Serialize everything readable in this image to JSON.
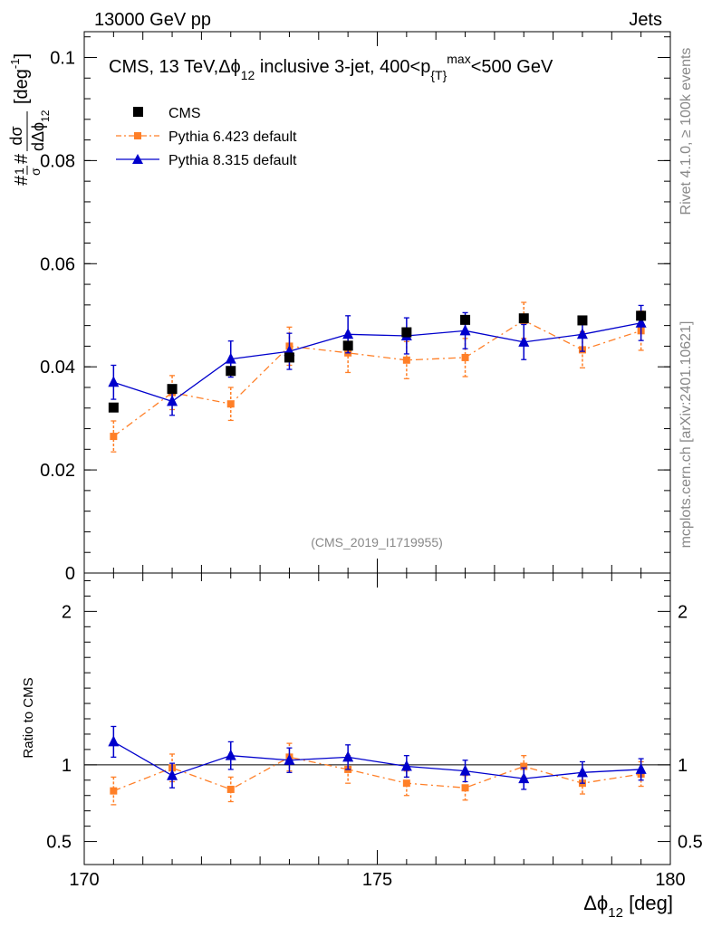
{
  "header": {
    "left_label": "13000 GeV pp",
    "right_label": "Jets"
  },
  "side_labels": {
    "rivet": "Rivet 4.1.0, ≥ 100k events",
    "mcplots": "mcplots.cern.ch [arXiv:2401.10621]"
  },
  "watermark": "(CMS_2019_I1719955)",
  "chart_data": [
    {
      "type": "scatter",
      "panel": "main",
      "title_parts": {
        "prefix": "CMS, 13 TeV,",
        "phi": "Δϕ",
        "phi_sub": "12",
        "middle": " inclusive 3-jet, 400<p",
        "pt_sub": "{T}",
        "pt_sup": "}",
        "pt_max": "max",
        "suffix": "<500 GeV"
      },
      "ylabel_parts": {
        "hash_frac": "#",
        "one": "1",
        "sigma": "σ",
        "hash2": "#",
        "dsigma": "dσ",
        "dphi": "dΔϕ",
        "dphi_sub": "12",
        "unit": "[deg",
        "unit_sup": "-1",
        "unit_end": "]"
      },
      "ylim": [
        0,
        0.105
      ],
      "xlim": [
        170,
        180
      ],
      "yticks": [
        0,
        0.02,
        0.04,
        0.06,
        0.08,
        0.1
      ],
      "ytick_labels": [
        "0",
        "0.02",
        "0.04",
        "0.06",
        "0.08",
        "0.1"
      ],
      "x": [
        170.5,
        171.5,
        172.5,
        173.5,
        174.5,
        175.5,
        176.5,
        177.5,
        178.5,
        179.5
      ],
      "series": [
        {
          "name": "CMS",
          "color": "#000000",
          "marker": "square",
          "values": [
            0.0321,
            0.0357,
            0.0392,
            0.0418,
            0.0441,
            0.0467,
            0.0491,
            0.0494,
            0.049,
            0.0499
          ],
          "errors": [
            0.0005,
            0.0005,
            0.0005,
            0.0005,
            0.0005,
            0.0005,
            0.0005,
            0.0005,
            0.0005,
            0.0005
          ]
        },
        {
          "name": "Pythia 6.423 default",
          "color": "#ff7f27",
          "marker": "square",
          "dashed": true,
          "values": [
            0.0265,
            0.035,
            0.0328,
            0.044,
            0.0427,
            0.0413,
            0.0418,
            0.049,
            0.0433,
            0.047
          ],
          "errors": [
            0.003,
            0.0033,
            0.0032,
            0.0037,
            0.0038,
            0.0036,
            0.0037,
            0.0035,
            0.0035,
            0.0038
          ]
        },
        {
          "name": "Pythia 8.315 default",
          "color": "#0000cc",
          "marker": "triangle",
          "values": [
            0.037,
            0.0333,
            0.0415,
            0.043,
            0.0463,
            0.046,
            0.047,
            0.0448,
            0.0463,
            0.0485
          ],
          "errors": [
            0.0033,
            0.0027,
            0.0035,
            0.0035,
            0.0036,
            0.0035,
            0.0035,
            0.0034,
            0.0033,
            0.0034
          ]
        }
      ]
    },
    {
      "type": "scatter",
      "panel": "ratio",
      "ylabel": "Ratio to CMS",
      "ylim": [
        0.35,
        2.25
      ],
      "yticks": [
        0.5,
        1,
        2
      ],
      "ytick_labels": [
        "0.5",
        "1",
        "2"
      ],
      "right_tick_labels": [
        "0.5",
        "1",
        "2"
      ],
      "xlabel_parts": {
        "phi": "Δϕ",
        "sub": "12",
        "unit": " [deg]"
      },
      "xticks": [
        170,
        175,
        180
      ],
      "xtick_labels": [
        "170",
        "175",
        "180"
      ],
      "x": [
        170.5,
        171.5,
        172.5,
        173.5,
        174.5,
        175.5,
        176.5,
        177.5,
        178.5,
        179.5
      ],
      "series": [
        {
          "name": "Pythia 6.423 default",
          "color": "#ff7f27",
          "marker": "square",
          "dashed": true,
          "values": [
            0.83,
            0.98,
            0.84,
            1.05,
            0.97,
            0.88,
            0.85,
            0.99,
            0.88,
            0.94
          ],
          "errors": [
            0.09,
            0.09,
            0.08,
            0.09,
            0.09,
            0.08,
            0.08,
            0.07,
            0.07,
            0.08
          ]
        },
        {
          "name": "Pythia 8.315 default",
          "color": "#0000cc",
          "marker": "triangle",
          "values": [
            1.15,
            0.93,
            1.06,
            1.03,
            1.05,
            0.99,
            0.96,
            0.91,
            0.95,
            0.97
          ],
          "errors": [
            0.1,
            0.08,
            0.09,
            0.08,
            0.08,
            0.07,
            0.07,
            0.07,
            0.07,
            0.07
          ]
        }
      ]
    }
  ]
}
